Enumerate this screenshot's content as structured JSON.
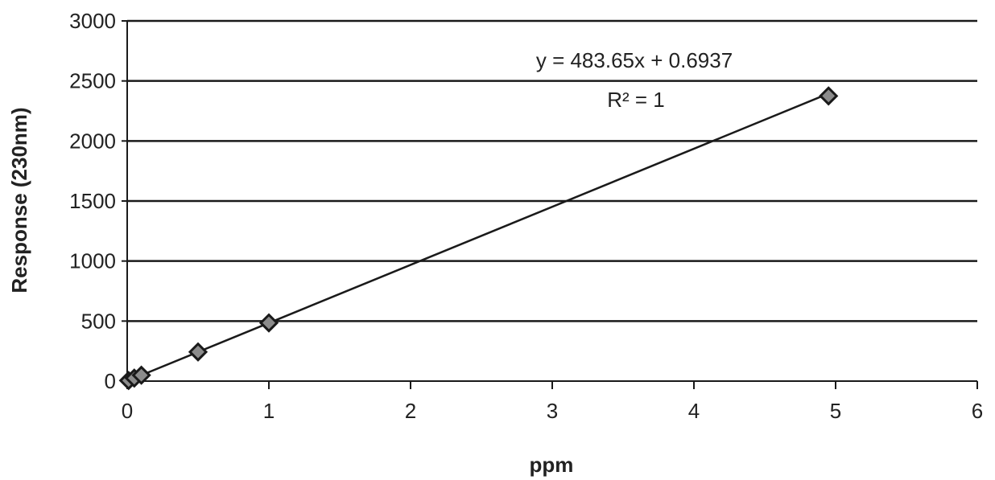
{
  "chart_data": {
    "type": "scatter",
    "title": "",
    "xlabel": "ppm",
    "ylabel": "Response (230nm)",
    "xlim": [
      0,
      6
    ],
    "ylim": [
      0,
      3000
    ],
    "x_ticks": [
      0,
      1,
      2,
      3,
      4,
      5,
      6
    ],
    "y_ticks": [
      0,
      500,
      1000,
      1500,
      2000,
      2500,
      3000
    ],
    "grid": "horizontal",
    "legend": "none",
    "series": [
      {
        "points": [
          {
            "x": 0.01,
            "y": 5
          },
          {
            "x": 0.05,
            "y": 25
          },
          {
            "x": 0.1,
            "y": 49
          },
          {
            "x": 0.5,
            "y": 243
          },
          {
            "x": 1,
            "y": 485
          },
          {
            "x": 4.95,
            "y": 2375
          }
        ],
        "marker": "diamond",
        "marker_color": "#8c8c8c"
      }
    ],
    "trendline": {
      "type": "linear",
      "slope": 483.65,
      "intercept": 0.6937,
      "x_range": [
        0,
        4.95
      ],
      "equation_text": "y = 483.65x + 0.6937",
      "r2_text": "R² = 1"
    }
  }
}
